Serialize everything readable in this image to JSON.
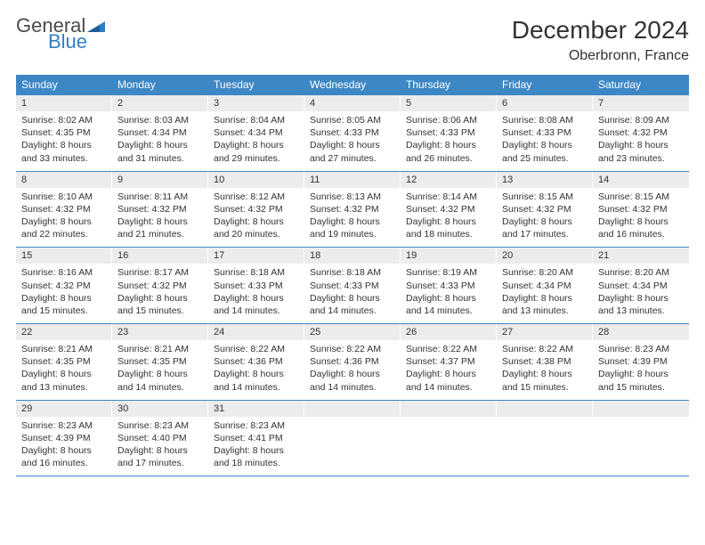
{
  "brand": {
    "part1": "General",
    "part2": "Blue",
    "icon_color": "#2f7fc4",
    "text_color_gray": "#4a4a4a"
  },
  "title": "December 2024",
  "location": "Oberbronn, France",
  "header_bg": "#3e87c5",
  "daynum_bg": "#ececec",
  "border_color": "#3e87c5",
  "font_family": "Arial",
  "day_names": [
    "Sunday",
    "Monday",
    "Tuesday",
    "Wednesday",
    "Thursday",
    "Friday",
    "Saturday"
  ],
  "weeks": [
    [
      {
        "n": "1",
        "sr": "Sunrise: 8:02 AM",
        "ss": "Sunset: 4:35 PM",
        "d1": "Daylight: 8 hours",
        "d2": "and 33 minutes."
      },
      {
        "n": "2",
        "sr": "Sunrise: 8:03 AM",
        "ss": "Sunset: 4:34 PM",
        "d1": "Daylight: 8 hours",
        "d2": "and 31 minutes."
      },
      {
        "n": "3",
        "sr": "Sunrise: 8:04 AM",
        "ss": "Sunset: 4:34 PM",
        "d1": "Daylight: 8 hours",
        "d2": "and 29 minutes."
      },
      {
        "n": "4",
        "sr": "Sunrise: 8:05 AM",
        "ss": "Sunset: 4:33 PM",
        "d1": "Daylight: 8 hours",
        "d2": "and 27 minutes."
      },
      {
        "n": "5",
        "sr": "Sunrise: 8:06 AM",
        "ss": "Sunset: 4:33 PM",
        "d1": "Daylight: 8 hours",
        "d2": "and 26 minutes."
      },
      {
        "n": "6",
        "sr": "Sunrise: 8:08 AM",
        "ss": "Sunset: 4:33 PM",
        "d1": "Daylight: 8 hours",
        "d2": "and 25 minutes."
      },
      {
        "n": "7",
        "sr": "Sunrise: 8:09 AM",
        "ss": "Sunset: 4:32 PM",
        "d1": "Daylight: 8 hours",
        "d2": "and 23 minutes."
      }
    ],
    [
      {
        "n": "8",
        "sr": "Sunrise: 8:10 AM",
        "ss": "Sunset: 4:32 PM",
        "d1": "Daylight: 8 hours",
        "d2": "and 22 minutes."
      },
      {
        "n": "9",
        "sr": "Sunrise: 8:11 AM",
        "ss": "Sunset: 4:32 PM",
        "d1": "Daylight: 8 hours",
        "d2": "and 21 minutes."
      },
      {
        "n": "10",
        "sr": "Sunrise: 8:12 AM",
        "ss": "Sunset: 4:32 PM",
        "d1": "Daylight: 8 hours",
        "d2": "and 20 minutes."
      },
      {
        "n": "11",
        "sr": "Sunrise: 8:13 AM",
        "ss": "Sunset: 4:32 PM",
        "d1": "Daylight: 8 hours",
        "d2": "and 19 minutes."
      },
      {
        "n": "12",
        "sr": "Sunrise: 8:14 AM",
        "ss": "Sunset: 4:32 PM",
        "d1": "Daylight: 8 hours",
        "d2": "and 18 minutes."
      },
      {
        "n": "13",
        "sr": "Sunrise: 8:15 AM",
        "ss": "Sunset: 4:32 PM",
        "d1": "Daylight: 8 hours",
        "d2": "and 17 minutes."
      },
      {
        "n": "14",
        "sr": "Sunrise: 8:15 AM",
        "ss": "Sunset: 4:32 PM",
        "d1": "Daylight: 8 hours",
        "d2": "and 16 minutes."
      }
    ],
    [
      {
        "n": "15",
        "sr": "Sunrise: 8:16 AM",
        "ss": "Sunset: 4:32 PM",
        "d1": "Daylight: 8 hours",
        "d2": "and 15 minutes."
      },
      {
        "n": "16",
        "sr": "Sunrise: 8:17 AM",
        "ss": "Sunset: 4:32 PM",
        "d1": "Daylight: 8 hours",
        "d2": "and 15 minutes."
      },
      {
        "n": "17",
        "sr": "Sunrise: 8:18 AM",
        "ss": "Sunset: 4:33 PM",
        "d1": "Daylight: 8 hours",
        "d2": "and 14 minutes."
      },
      {
        "n": "18",
        "sr": "Sunrise: 8:18 AM",
        "ss": "Sunset: 4:33 PM",
        "d1": "Daylight: 8 hours",
        "d2": "and 14 minutes."
      },
      {
        "n": "19",
        "sr": "Sunrise: 8:19 AM",
        "ss": "Sunset: 4:33 PM",
        "d1": "Daylight: 8 hours",
        "d2": "and 14 minutes."
      },
      {
        "n": "20",
        "sr": "Sunrise: 8:20 AM",
        "ss": "Sunset: 4:34 PM",
        "d1": "Daylight: 8 hours",
        "d2": "and 13 minutes."
      },
      {
        "n": "21",
        "sr": "Sunrise: 8:20 AM",
        "ss": "Sunset: 4:34 PM",
        "d1": "Daylight: 8 hours",
        "d2": "and 13 minutes."
      }
    ],
    [
      {
        "n": "22",
        "sr": "Sunrise: 8:21 AM",
        "ss": "Sunset: 4:35 PM",
        "d1": "Daylight: 8 hours",
        "d2": "and 13 minutes."
      },
      {
        "n": "23",
        "sr": "Sunrise: 8:21 AM",
        "ss": "Sunset: 4:35 PM",
        "d1": "Daylight: 8 hours",
        "d2": "and 14 minutes."
      },
      {
        "n": "24",
        "sr": "Sunrise: 8:22 AM",
        "ss": "Sunset: 4:36 PM",
        "d1": "Daylight: 8 hours",
        "d2": "and 14 minutes."
      },
      {
        "n": "25",
        "sr": "Sunrise: 8:22 AM",
        "ss": "Sunset: 4:36 PM",
        "d1": "Daylight: 8 hours",
        "d2": "and 14 minutes."
      },
      {
        "n": "26",
        "sr": "Sunrise: 8:22 AM",
        "ss": "Sunset: 4:37 PM",
        "d1": "Daylight: 8 hours",
        "d2": "and 14 minutes."
      },
      {
        "n": "27",
        "sr": "Sunrise: 8:22 AM",
        "ss": "Sunset: 4:38 PM",
        "d1": "Daylight: 8 hours",
        "d2": "and 15 minutes."
      },
      {
        "n": "28",
        "sr": "Sunrise: 8:23 AM",
        "ss": "Sunset: 4:39 PM",
        "d1": "Daylight: 8 hours",
        "d2": "and 15 minutes."
      }
    ],
    [
      {
        "n": "29",
        "sr": "Sunrise: 8:23 AM",
        "ss": "Sunset: 4:39 PM",
        "d1": "Daylight: 8 hours",
        "d2": "and 16 minutes."
      },
      {
        "n": "30",
        "sr": "Sunrise: 8:23 AM",
        "ss": "Sunset: 4:40 PM",
        "d1": "Daylight: 8 hours",
        "d2": "and 17 minutes."
      },
      {
        "n": "31",
        "sr": "Sunrise: 8:23 AM",
        "ss": "Sunset: 4:41 PM",
        "d1": "Daylight: 8 hours",
        "d2": "and 18 minutes."
      },
      {
        "n": "",
        "sr": "",
        "ss": "",
        "d1": "",
        "d2": "",
        "empty": true
      },
      {
        "n": "",
        "sr": "",
        "ss": "",
        "d1": "",
        "d2": "",
        "empty": true
      },
      {
        "n": "",
        "sr": "",
        "ss": "",
        "d1": "",
        "d2": "",
        "empty": true
      },
      {
        "n": "",
        "sr": "",
        "ss": "",
        "d1": "",
        "d2": "",
        "empty": true
      }
    ]
  ]
}
